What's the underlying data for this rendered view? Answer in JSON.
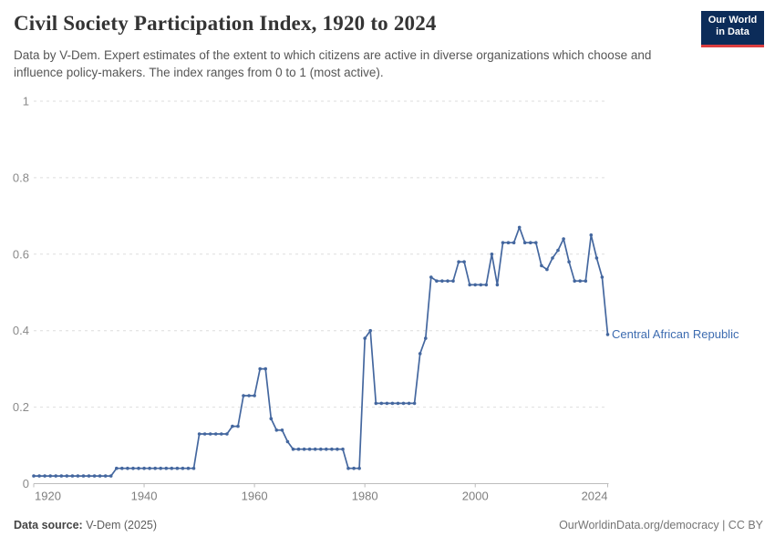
{
  "header": {
    "title": "Civil Society Participation Index, 1920 to 2024",
    "subtitle": "Data by V-Dem. Expert estimates of the extent to which citizens are active in diverse organizations which choose and influence policy-makers. The index ranges from 0 to 1 (most active).",
    "logo": {
      "line1": "Our World",
      "line2": "in Data",
      "bg_color": "#0c2c59",
      "stripe_color": "#dc3e40"
    }
  },
  "chart_data": {
    "type": "line",
    "title": "Civil Society Participation Index, 1920 to 2024",
    "xlabel": "",
    "ylabel": "",
    "xlim": [
      1920,
      2024
    ],
    "ylim": [
      0,
      1
    ],
    "x_ticks": [
      1920,
      1940,
      1960,
      1980,
      2000,
      2024
    ],
    "y_ticks": [
      0,
      0.2,
      0.4,
      0.6,
      0.8,
      1
    ],
    "grid": "horizontal-dashed",
    "legend_position": "end-of-line-label",
    "series": [
      {
        "name": "Central African Republic",
        "color": "#44679f",
        "marker": "circle",
        "years": [
          1920,
          1921,
          1922,
          1923,
          1924,
          1925,
          1926,
          1927,
          1928,
          1929,
          1930,
          1931,
          1932,
          1933,
          1934,
          1935,
          1936,
          1937,
          1938,
          1939,
          1940,
          1941,
          1942,
          1943,
          1944,
          1945,
          1946,
          1947,
          1948,
          1949,
          1950,
          1951,
          1952,
          1953,
          1954,
          1955,
          1956,
          1957,
          1958,
          1959,
          1960,
          1961,
          1962,
          1963,
          1964,
          1965,
          1966,
          1967,
          1968,
          1969,
          1970,
          1971,
          1972,
          1973,
          1974,
          1975,
          1976,
          1977,
          1978,
          1979,
          1980,
          1981,
          1982,
          1983,
          1984,
          1985,
          1986,
          1987,
          1988,
          1989,
          1990,
          1991,
          1992,
          1993,
          1994,
          1995,
          1996,
          1997,
          1998,
          1999,
          2000,
          2001,
          2002,
          2003,
          2004,
          2005,
          2006,
          2007,
          2008,
          2009,
          2010,
          2011,
          2012,
          2013,
          2014,
          2015,
          2016,
          2017,
          2018,
          2019,
          2020,
          2021,
          2022,
          2023,
          2024
        ],
        "values": [
          0.02,
          0.02,
          0.02,
          0.02,
          0.02,
          0.02,
          0.02,
          0.02,
          0.02,
          0.02,
          0.02,
          0.02,
          0.02,
          0.02,
          0.02,
          0.04,
          0.04,
          0.04,
          0.04,
          0.04,
          0.04,
          0.04,
          0.04,
          0.04,
          0.04,
          0.04,
          0.04,
          0.04,
          0.04,
          0.04,
          0.13,
          0.13,
          0.13,
          0.13,
          0.13,
          0.13,
          0.15,
          0.15,
          0.23,
          0.23,
          0.23,
          0.3,
          0.3,
          0.17,
          0.14,
          0.14,
          0.11,
          0.09,
          0.09,
          0.09,
          0.09,
          0.09,
          0.09,
          0.09,
          0.09,
          0.09,
          0.09,
          0.04,
          0.04,
          0.04,
          0.38,
          0.4,
          0.21,
          0.21,
          0.21,
          0.21,
          0.21,
          0.21,
          0.21,
          0.21,
          0.34,
          0.38,
          0.54,
          0.53,
          0.53,
          0.53,
          0.53,
          0.58,
          0.58,
          0.52,
          0.52,
          0.52,
          0.52,
          0.6,
          0.52,
          0.63,
          0.63,
          0.63,
          0.67,
          0.63,
          0.63,
          0.63,
          0.57,
          0.56,
          0.59,
          0.61,
          0.64,
          0.58,
          0.53,
          0.53,
          0.53,
          0.65,
          0.59,
          0.54,
          0.39
        ]
      }
    ]
  },
  "footer": {
    "source_label": "Data source:",
    "source_text": "V-Dem (2025)",
    "credit": "OurWorldinData.org/democracy | CC BY"
  }
}
